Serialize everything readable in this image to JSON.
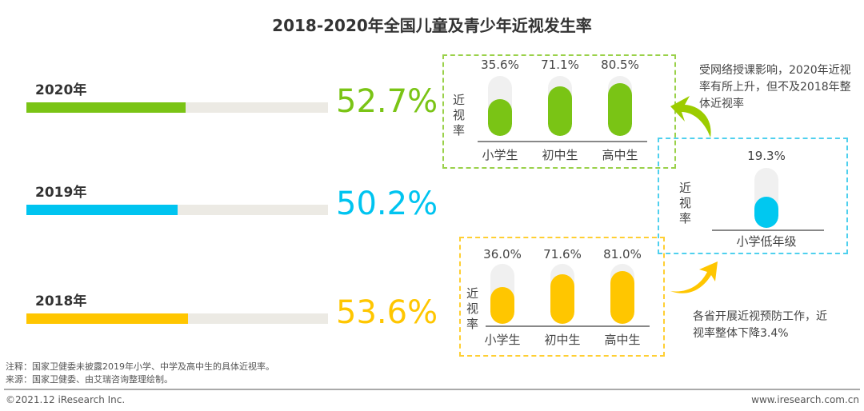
{
  "chart_data": {
    "type": "bar",
    "title": "2018-2020年全国儿童及青少年近视发生率",
    "overall": [
      {
        "year": "2020年",
        "value": 52.7,
        "label": "52.7%",
        "color": "#7ac415"
      },
      {
        "year": "2019年",
        "value": 50.2,
        "label": "50.2%",
        "color": "#00c4f0"
      },
      {
        "year": "2018年",
        "value": 53.6,
        "label": "53.6%",
        "color": "#ffc600"
      }
    ],
    "panels": [
      {
        "name": "2020",
        "ylabel": "近视率",
        "color": "#7ac415",
        "categories": [
          "小学生",
          "初中生",
          "高中生"
        ],
        "values": [
          35.6,
          71.1,
          80.5
        ],
        "labels": [
          "35.6%",
          "71.1%",
          "80.5%"
        ]
      },
      {
        "name": "2019",
        "ylabel": "近视率",
        "color": "#00c8f0",
        "categories": [
          "小学低年级"
        ],
        "values": [
          19.3
        ],
        "labels": [
          "19.3%"
        ]
      },
      {
        "name": "2018",
        "ylabel": "近视率",
        "color": "#ffc600",
        "categories": [
          "小学生",
          "初中生",
          "高中生"
        ],
        "values": [
          36.0,
          71.6,
          81.0
        ],
        "labels": [
          "36.0%",
          "71.6%",
          "81.0%"
        ]
      }
    ],
    "annotations": [
      "受网络授课影响，2020年近视率有所上升，但不及2018年整体近视率",
      "各省开展近视预防工作，近视率整体下降3.4%"
    ]
  },
  "footer": {
    "note": "注释：国家卫健委未披露2019年小学、中学及高中生的具体近视率。",
    "source": "来源：国家卫健委、由艾瑞咨询整理绘制。",
    "copyright": "©2021.12 iResearch Inc.",
    "website": "www.iresearch.com.cn"
  }
}
